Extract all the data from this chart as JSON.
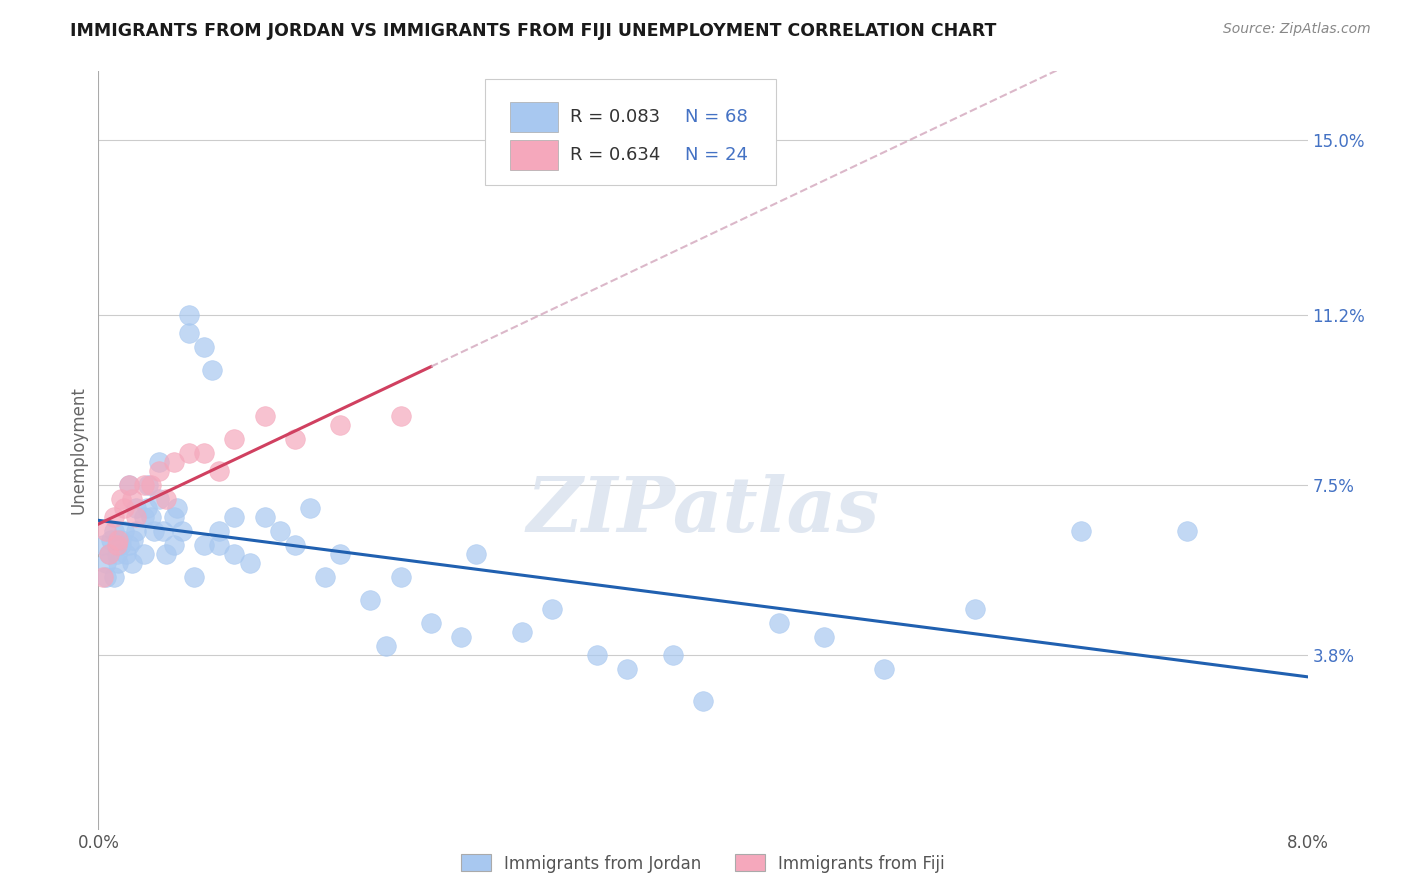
{
  "title": "IMMIGRANTS FROM JORDAN VS IMMIGRANTS FROM FIJI UNEMPLOYMENT CORRELATION CHART",
  "source": "Source: ZipAtlas.com",
  "ylabel": "Unemployment",
  "ytick_labels": [
    "15.0%",
    "11.2%",
    "7.5%",
    "3.8%"
  ],
  "ytick_values": [
    0.15,
    0.112,
    0.075,
    0.038
  ],
  "xlim": [
    0.0,
    0.08
  ],
  "ylim": [
    0.0,
    0.165
  ],
  "legend_jordan": "R = 0.083   N = 68",
  "legend_fiji": "R = 0.634   N = 24",
  "color_jordan": "#A8C8F0",
  "color_fiji": "#F5A8BC",
  "color_jordan_line": "#2060B0",
  "color_fiji_line": "#D04060",
  "color_fiji_dashed": "#D0A0B8",
  "jordan_x": [
    0.0003,
    0.0005,
    0.0005,
    0.0007,
    0.0008,
    0.001,
    0.001,
    0.0012,
    0.0013,
    0.0015,
    0.0015,
    0.0017,
    0.0018,
    0.002,
    0.002,
    0.0022,
    0.0023,
    0.0025,
    0.0025,
    0.003,
    0.003,
    0.0032,
    0.0033,
    0.0035,
    0.0037,
    0.004,
    0.004,
    0.0043,
    0.0045,
    0.005,
    0.005,
    0.0052,
    0.0055,
    0.006,
    0.006,
    0.0063,
    0.007,
    0.007,
    0.0075,
    0.008,
    0.008,
    0.009,
    0.009,
    0.01,
    0.011,
    0.012,
    0.013,
    0.014,
    0.015,
    0.016,
    0.018,
    0.019,
    0.02,
    0.022,
    0.024,
    0.025,
    0.028,
    0.03,
    0.033,
    0.035,
    0.038,
    0.04,
    0.045,
    0.048,
    0.052,
    0.058,
    0.065,
    0.072
  ],
  "jordan_y": [
    0.062,
    0.058,
    0.055,
    0.06,
    0.063,
    0.065,
    0.055,
    0.06,
    0.058,
    0.062,
    0.063,
    0.065,
    0.06,
    0.075,
    0.062,
    0.058,
    0.063,
    0.07,
    0.065,
    0.068,
    0.06,
    0.07,
    0.075,
    0.068,
    0.065,
    0.08,
    0.072,
    0.065,
    0.06,
    0.062,
    0.068,
    0.07,
    0.065,
    0.112,
    0.108,
    0.055,
    0.062,
    0.105,
    0.1,
    0.065,
    0.062,
    0.068,
    0.06,
    0.058,
    0.068,
    0.065,
    0.062,
    0.07,
    0.055,
    0.06,
    0.05,
    0.04,
    0.055,
    0.045,
    0.042,
    0.06,
    0.043,
    0.048,
    0.038,
    0.035,
    0.038,
    0.028,
    0.045,
    0.042,
    0.035,
    0.048,
    0.065,
    0.065
  ],
  "fiji_x": [
    0.0003,
    0.0005,
    0.0007,
    0.001,
    0.0012,
    0.0013,
    0.0015,
    0.0017,
    0.002,
    0.0022,
    0.0025,
    0.003,
    0.0035,
    0.004,
    0.0045,
    0.005,
    0.006,
    0.007,
    0.008,
    0.009,
    0.011,
    0.013,
    0.016,
    0.02
  ],
  "fiji_y": [
    0.055,
    0.065,
    0.06,
    0.068,
    0.062,
    0.063,
    0.072,
    0.07,
    0.075,
    0.072,
    0.068,
    0.075,
    0.075,
    0.078,
    0.072,
    0.08,
    0.082,
    0.082,
    0.078,
    0.085,
    0.09,
    0.085,
    0.088,
    0.09
  ]
}
